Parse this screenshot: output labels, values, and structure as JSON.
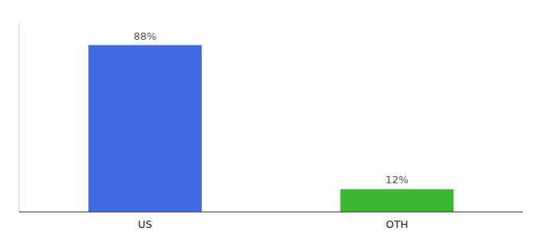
{
  "chart_data": {
    "type": "bar",
    "categories": [
      "US",
      "OTH"
    ],
    "values": [
      88,
      12
    ],
    "value_labels": [
      "88%",
      "12%"
    ],
    "colors": [
      "#4169e1",
      "#3cb832"
    ],
    "ylim": [
      0,
      100
    ],
    "data_labels": true,
    "tick_labels": "x",
    "grid": false
  }
}
